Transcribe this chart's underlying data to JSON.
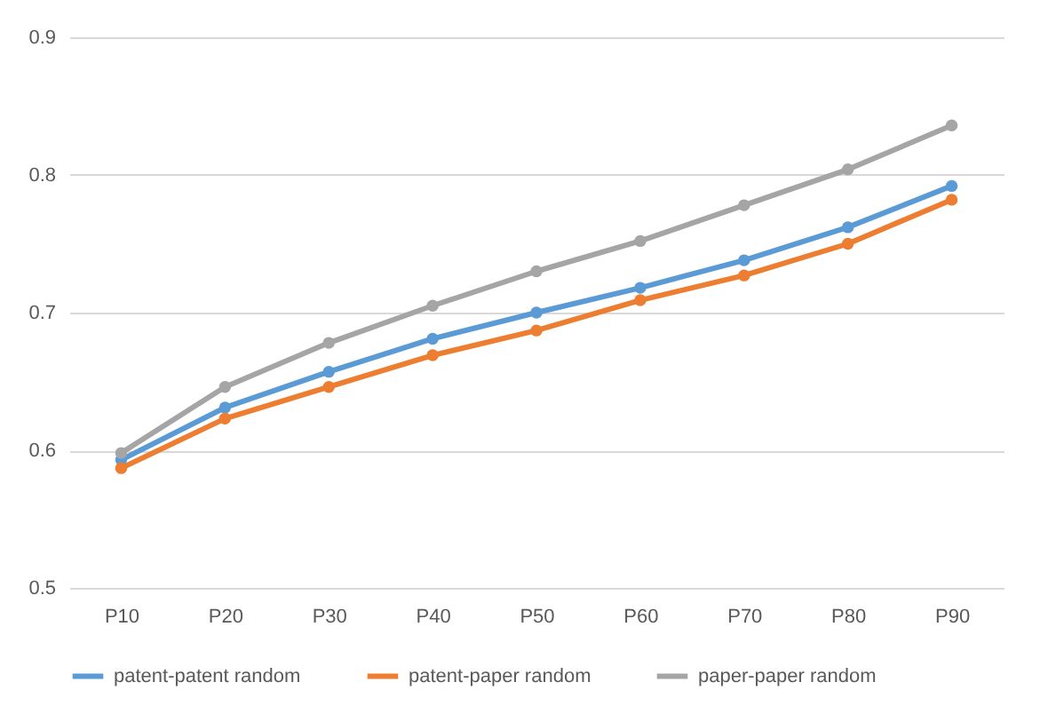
{
  "chart_data": {
    "type": "line",
    "categories": [
      "P10",
      "P20",
      "P30",
      "P40",
      "P50",
      "P60",
      "P70",
      "P80",
      "P90"
    ],
    "series": [
      {
        "name": "patent-patent random",
        "color": "#5b9bd5",
        "values": [
          0.593,
          0.631,
          0.657,
          0.681,
          0.7,
          0.718,
          0.738,
          0.762,
          0.792
        ]
      },
      {
        "name": "patent-paper random",
        "color": "#ed7d31",
        "values": [
          0.587,
          0.623,
          0.646,
          0.669,
          0.687,
          0.709,
          0.727,
          0.75,
          0.782
        ]
      },
      {
        "name": "paper-paper random",
        "color": "#a5a5a5",
        "values": [
          0.598,
          0.646,
          0.678,
          0.705,
          0.73,
          0.752,
          0.778,
          0.804,
          0.836
        ]
      }
    ],
    "ylim": [
      0.5,
      0.9
    ],
    "yticks": [
      0.5,
      0.6,
      0.7,
      0.8,
      0.9
    ],
    "grid": "y",
    "legend": "bottom",
    "marker": "circle",
    "line_style": "solid"
  }
}
